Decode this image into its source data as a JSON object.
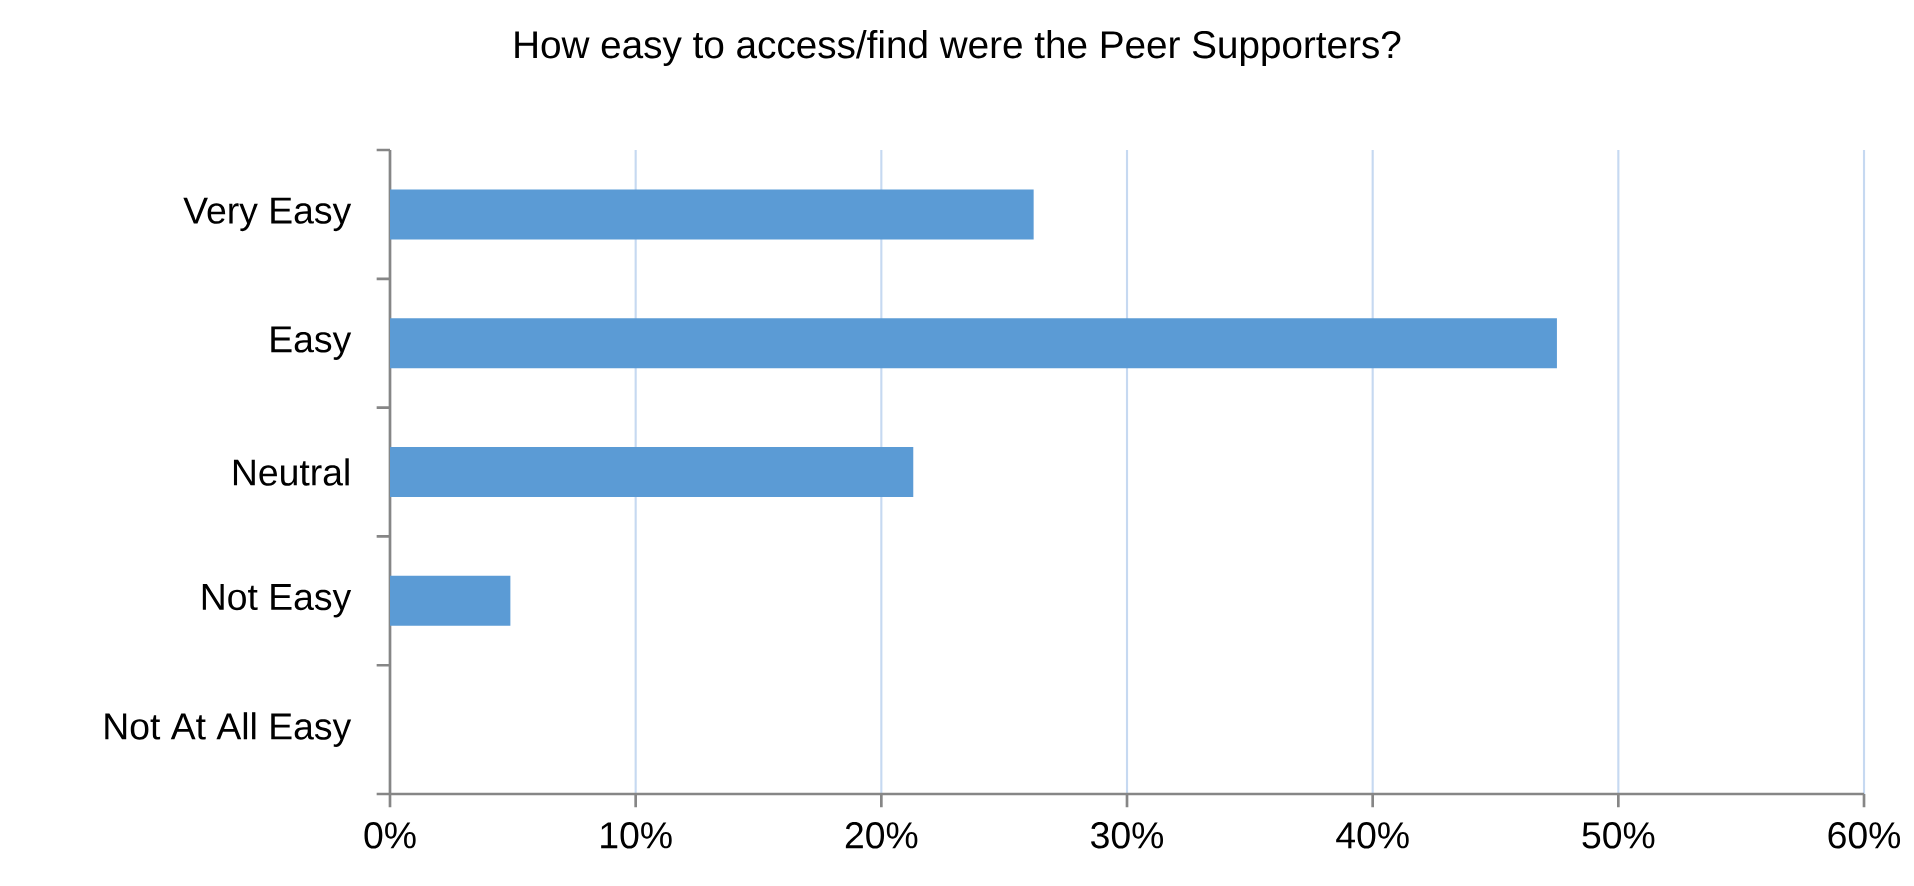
{
  "chart_data": {
    "type": "bar",
    "orientation": "horizontal",
    "title": "How easy to access/find were the Peer Supporters?",
    "categories": [
      "Very Easy",
      "Easy",
      "Neutral",
      "Not Easy",
      "Not At All Easy"
    ],
    "values": [
      26.2,
      47.5,
      21.3,
      4.9,
      0
    ],
    "color": "#5b9bd5",
    "xlim": [
      0,
      60
    ],
    "xticks": [
      {
        "value": 0,
        "label": "0%"
      },
      {
        "value": 10,
        "label": "10%"
      },
      {
        "value": 20,
        "label": "20%"
      },
      {
        "value": 30,
        "label": "30%"
      },
      {
        "value": 40,
        "label": "40%"
      },
      {
        "value": 50,
        "label": "50%"
      },
      {
        "value": 60,
        "label": "60%"
      }
    ],
    "grid": "x"
  }
}
